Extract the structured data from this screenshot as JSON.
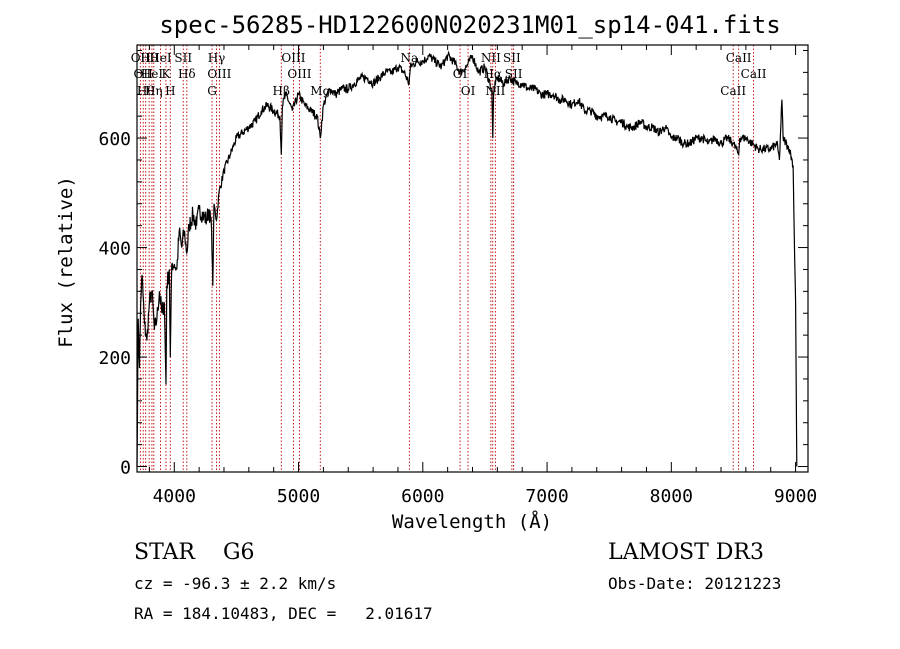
{
  "chart_data": {
    "type": "line",
    "title": "spec-56285-HD122600N020231M01_sp14-041.fits",
    "xlabel": "Wavelength (Å)",
    "ylabel": "Flux (relative)",
    "xlim": [
      3700,
      9100
    ],
    "ylim": [
      -10,
      770
    ],
    "xticks": [
      4000,
      5000,
      6000,
      7000,
      8000,
      9000
    ],
    "yticks": [
      0,
      200,
      400,
      600
    ],
    "grid": false,
    "series": [
      {
        "x": [
          3700,
          3710,
          3720,
          3730,
          3740,
          3760,
          3780,
          3800,
          3820,
          3840,
          3860,
          3880,
          3900,
          3920,
          3933,
          3940,
          3960,
          3968,
          3980,
          4000,
          4020,
          4040,
          4060,
          4080,
          4101,
          4120,
          4150,
          4180,
          4200,
          4230,
          4260,
          4280,
          4300,
          4310,
          4320,
          4340,
          4360,
          4400,
          4450,
          4500,
          4550,
          4600,
          4650,
          4700,
          4750,
          4800,
          4850,
          4861,
          4870,
          4900,
          4950,
          5000,
          5050,
          5100,
          5150,
          5175,
          5200,
          5250,
          5300,
          5350,
          5400,
          5450,
          5500,
          5550,
          5600,
          5650,
          5700,
          5750,
          5800,
          5850,
          5890,
          5900,
          5950,
          6000,
          6050,
          6100,
          6150,
          6200,
          6250,
          6300,
          6350,
          6400,
          6450,
          6500,
          6540,
          6555,
          6563,
          6570,
          6585,
          6600,
          6650,
          6700,
          6750,
          6800,
          6850,
          6900,
          6950,
          7000,
          7050,
          7100,
          7150,
          7200,
          7250,
          7300,
          7350,
          7400,
          7450,
          7500,
          7550,
          7600,
          7650,
          7700,
          7750,
          7800,
          7850,
          7900,
          7950,
          8000,
          8050,
          8100,
          8150,
          8200,
          8250,
          8300,
          8350,
          8400,
          8450,
          8500,
          8542,
          8550,
          8600,
          8650,
          8700,
          8750,
          8800,
          8850,
          8870,
          8890,
          8900,
          8950,
          8980,
          8990,
          9000,
          9005,
          9010
        ],
        "y": [
          0,
          270,
          180,
          300,
          350,
          260,
          230,
          300,
          320,
          250,
          270,
          320,
          280,
          300,
          150,
          330,
          360,
          200,
          370,
          370,
          360,
          430,
          400,
          430,
          390,
          440,
          460,
          440,
          470,
          460,
          450,
          470,
          430,
          330,
          480,
          450,
          500,
          540,
          570,
          600,
          610,
          620,
          630,
          650,
          660,
          650,
          640,
          570,
          660,
          680,
          650,
          680,
          660,
          650,
          640,
          600,
          660,
          690,
          680,
          690,
          690,
          700,
          710,
          710,
          700,
          710,
          720,
          720,
          730,
          720,
          700,
          730,
          740,
          740,
          750,
          740,
          730,
          750,
          740,
          720,
          730,
          750,
          720,
          730,
          700,
          690,
          600,
          680,
          700,
          710,
          700,
          710,
          700,
          700,
          690,
          690,
          680,
          680,
          680,
          670,
          670,
          660,
          670,
          650,
          650,
          640,
          640,
          640,
          630,
          630,
          620,
          620,
          630,
          620,
          620,
          610,
          620,
          600,
          600,
          590,
          590,
          600,
          600,
          590,
          600,
          590,
          600,
          590,
          570,
          600,
          600,
          590,
          580,
          580,
          580,
          590,
          560,
          670,
          600,
          580,
          550,
          420,
          300,
          150,
          0
        ],
        "color": "#000000"
      }
    ],
    "line_markers": [
      {
        "wavelength": 3727,
        "label": "OII"
      },
      {
        "wavelength": 3750,
        "label": "OII"
      },
      {
        "wavelength": 3770,
        "label": "Hθ"
      },
      {
        "wavelength": 3798,
        "label": "Hθ"
      },
      {
        "wavelength": 3820,
        "label": "HeI"
      },
      {
        "wavelength": 3835,
        "label": "Hη"
      },
      {
        "wavelength": 3889,
        "label": "HeI"
      },
      {
        "wavelength": 3933,
        "label": "K"
      },
      {
        "wavelength": 3968,
        "label": "H"
      },
      {
        "wavelength": 4072,
        "label": "SII"
      },
      {
        "wavelength": 4101,
        "label": "Hδ"
      },
      {
        "wavelength": 4304,
        "label": "G"
      },
      {
        "wavelength": 4340,
        "label": "Hγ"
      },
      {
        "wavelength": 4363,
        "label": "OIII"
      },
      {
        "wavelength": 4861,
        "label": "Hβ"
      },
      {
        "wavelength": 4959,
        "label": "OIII"
      },
      {
        "wavelength": 5007,
        "label": "OIII"
      },
      {
        "wavelength": 5175,
        "label": "Mg"
      },
      {
        "wavelength": 5892,
        "label": "Na"
      },
      {
        "wavelength": 6300,
        "label": "OI"
      },
      {
        "wavelength": 6364,
        "label": "OI"
      },
      {
        "wavelength": 6548,
        "label": "NII"
      },
      {
        "wavelength": 6563,
        "label": "Hα"
      },
      {
        "wavelength": 6584,
        "label": "NII"
      },
      {
        "wavelength": 6717,
        "label": "SII"
      },
      {
        "wavelength": 6731,
        "label": "SII"
      },
      {
        "wavelength": 8498,
        "label": "CaII"
      },
      {
        "wavelength": 8542,
        "label": "CaII"
      },
      {
        "wavelength": 8662,
        "label": "CaII"
      }
    ],
    "marker_color": "#c00000"
  },
  "info": {
    "class": "STAR",
    "subclass": "G6",
    "survey": "LAMOST DR3",
    "redshift": "cz = -96.3 ± 2.2 km/s",
    "obs_date": "Obs-Date: 20121223",
    "coords": "RA = 184.10483, DEC =   2.01617"
  }
}
